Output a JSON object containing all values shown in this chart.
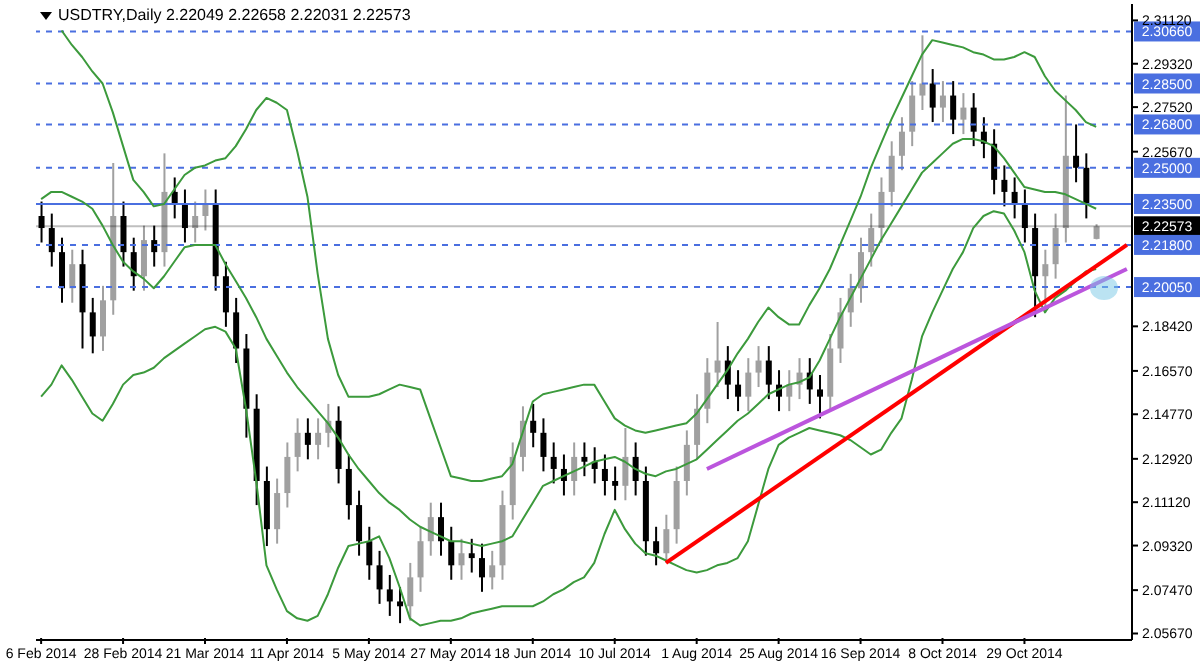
{
  "chart_data": {
    "type": "candlestick",
    "title": "USDTRY,Daily  2.22049 2.22658 2.22031 2.22573",
    "categories": [
      "6 Feb 2014",
      null,
      null,
      null,
      null,
      null,
      null,
      null,
      "28 Feb 2014",
      null,
      null,
      null,
      null,
      null,
      null,
      null,
      "21 Mar 2014",
      null,
      null,
      null,
      null,
      null,
      null,
      null,
      "11 Apr 2014",
      null,
      null,
      null,
      null,
      null,
      null,
      null,
      "5 May 2014",
      null,
      null,
      null,
      null,
      null,
      null,
      null,
      "27 May 2014",
      null,
      null,
      null,
      null,
      null,
      null,
      null,
      "18 Jun 2014",
      null,
      null,
      null,
      null,
      null,
      null,
      null,
      "10 Jul 2014",
      null,
      null,
      null,
      null,
      null,
      null,
      null,
      "1 Aug 2014",
      null,
      null,
      null,
      null,
      null,
      null,
      null,
      "25 Aug 2014",
      null,
      null,
      null,
      null,
      null,
      null,
      null,
      "16 Sep 2014",
      null,
      null,
      null,
      null,
      null,
      null,
      null,
      "8 Oct 2014",
      null,
      null,
      null,
      null,
      null,
      null,
      null,
      "29 Oct 2014",
      null,
      null,
      null,
      null,
      null,
      null,
      null,
      null,
      null,
      null
    ],
    "ohlc": [
      [
        2.23,
        2.236,
        2.219,
        2.225
      ],
      [
        2.225,
        2.231,
        2.209,
        2.215
      ],
      [
        2.215,
        2.221,
        2.194,
        2.2
      ],
      [
        2.2,
        2.216,
        2.194,
        2.21
      ],
      [
        2.21,
        2.216,
        2.175,
        2.19
      ],
      [
        2.19,
        2.196,
        2.173,
        2.18
      ],
      [
        2.18,
        2.201,
        2.174,
        2.195
      ],
      [
        2.195,
        2.252,
        2.189,
        2.23
      ],
      [
        2.23,
        2.236,
        2.209,
        2.215
      ],
      [
        2.215,
        2.221,
        2.199,
        2.205
      ],
      [
        2.205,
        2.226,
        2.199,
        2.22
      ],
      [
        2.22,
        2.226,
        2.209,
        2.215
      ],
      [
        2.215,
        2.256,
        2.209,
        2.24
      ],
      [
        2.24,
        2.246,
        2.229,
        2.235
      ],
      [
        2.235,
        2.241,
        2.219,
        2.225
      ],
      [
        2.225,
        2.236,
        2.219,
        2.23
      ],
      [
        2.23,
        2.241,
        2.224,
        2.235
      ],
      [
        2.235,
        2.241,
        2.199,
        2.205
      ],
      [
        2.205,
        2.211,
        2.184,
        2.19
      ],
      [
        2.19,
        2.196,
        2.169,
        2.175
      ],
      [
        2.175,
        2.181,
        2.138,
        2.15
      ],
      [
        2.15,
        2.156,
        2.11,
        2.12
      ],
      [
        2.12,
        2.126,
        2.093,
        2.1
      ],
      [
        2.1,
        2.121,
        2.094,
        2.115
      ],
      [
        2.115,
        2.136,
        2.109,
        2.13
      ],
      [
        2.13,
        2.146,
        2.124,
        2.14
      ],
      [
        2.14,
        2.146,
        2.129,
        2.135
      ],
      [
        2.135,
        2.146,
        2.129,
        2.14
      ],
      [
        2.14,
        2.152,
        2.134,
        2.145
      ],
      [
        2.145,
        2.151,
        2.119,
        2.125
      ],
      [
        2.125,
        2.131,
        2.104,
        2.11
      ],
      [
        2.11,
        2.116,
        2.089,
        2.095
      ],
      [
        2.095,
        2.101,
        2.079,
        2.085
      ],
      [
        2.085,
        2.091,
        2.069,
        2.075
      ],
      [
        2.075,
        2.081,
        2.064,
        2.07
      ],
      [
        2.07,
        2.076,
        2.061,
        2.068
      ],
      [
        2.068,
        2.086,
        2.062,
        2.08
      ],
      [
        2.08,
        2.101,
        2.074,
        2.095
      ],
      [
        2.095,
        2.111,
        2.089,
        2.105
      ],
      [
        2.105,
        2.111,
        2.089,
        2.095
      ],
      [
        2.095,
        2.101,
        2.079,
        2.085
      ],
      [
        2.085,
        2.096,
        2.079,
        2.09
      ],
      [
        2.09,
        2.096,
        2.082,
        2.088
      ],
      [
        2.088,
        2.094,
        2.074,
        2.08
      ],
      [
        2.08,
        2.091,
        2.075,
        2.085
      ],
      [
        2.085,
        2.116,
        2.079,
        2.11
      ],
      [
        2.11,
        2.136,
        2.104,
        2.13
      ],
      [
        2.13,
        2.151,
        2.124,
        2.145
      ],
      [
        2.145,
        2.152,
        2.134,
        2.14
      ],
      [
        2.14,
        2.146,
        2.124,
        2.13
      ],
      [
        2.13,
        2.136,
        2.119,
        2.125
      ],
      [
        2.125,
        2.131,
        2.114,
        2.12
      ],
      [
        2.12,
        2.136,
        2.114,
        2.13
      ],
      [
        2.13,
        2.136,
        2.122,
        2.128
      ],
      [
        2.128,
        2.134,
        2.119,
        2.125
      ],
      [
        2.125,
        2.131,
        2.114,
        2.12
      ],
      [
        2.12,
        2.126,
        2.112,
        2.118
      ],
      [
        2.118,
        2.142,
        2.112,
        2.13
      ],
      [
        2.13,
        2.136,
        2.114,
        2.12
      ],
      [
        2.12,
        2.126,
        2.089,
        2.095
      ],
      [
        2.095,
        2.101,
        2.085,
        2.09
      ],
      [
        2.09,
        2.106,
        2.086,
        2.1
      ],
      [
        2.1,
        2.126,
        2.094,
        2.12
      ],
      [
        2.12,
        2.141,
        2.114,
        2.135
      ],
      [
        2.135,
        2.156,
        2.129,
        2.15
      ],
      [
        2.15,
        2.171,
        2.144,
        2.165
      ],
      [
        2.165,
        2.186,
        2.159,
        2.17
      ],
      [
        2.17,
        2.176,
        2.154,
        2.16
      ],
      [
        2.16,
        2.166,
        2.149,
        2.155
      ],
      [
        2.155,
        2.171,
        2.149,
        2.165
      ],
      [
        2.165,
        2.176,
        2.159,
        2.17
      ],
      [
        2.17,
        2.176,
        2.154,
        2.16
      ],
      [
        2.16,
        2.166,
        2.149,
        2.155
      ],
      [
        2.155,
        2.166,
        2.149,
        2.16
      ],
      [
        2.16,
        2.171,
        2.154,
        2.165
      ],
      [
        2.165,
        2.171,
        2.152,
        2.158
      ],
      [
        2.158,
        2.164,
        2.146,
        2.155
      ],
      [
        2.155,
        2.181,
        2.149,
        2.175
      ],
      [
        2.175,
        2.196,
        2.169,
        2.19
      ],
      [
        2.19,
        2.206,
        2.184,
        2.2
      ],
      [
        2.2,
        2.221,
        2.194,
        2.215
      ],
      [
        2.215,
        2.231,
        2.209,
        2.225
      ],
      [
        2.225,
        2.246,
        2.219,
        2.24
      ],
      [
        2.24,
        2.261,
        2.234,
        2.255
      ],
      [
        2.255,
        2.271,
        2.249,
        2.265
      ],
      [
        2.265,
        2.286,
        2.259,
        2.28
      ],
      [
        2.28,
        2.305,
        2.274,
        2.285
      ],
      [
        2.285,
        2.291,
        2.269,
        2.275
      ],
      [
        2.275,
        2.286,
        2.269,
        2.28
      ],
      [
        2.28,
        2.286,
        2.264,
        2.27
      ],
      [
        2.27,
        2.281,
        2.264,
        2.275
      ],
      [
        2.275,
        2.281,
        2.259,
        2.265
      ],
      [
        2.265,
        2.271,
        2.254,
        2.26
      ],
      [
        2.26,
        2.266,
        2.239,
        2.245
      ],
      [
        2.245,
        2.251,
        2.234,
        2.24
      ],
      [
        2.24,
        2.246,
        2.229,
        2.235
      ],
      [
        2.235,
        2.241,
        2.219,
        2.225
      ],
      [
        2.225,
        2.231,
        2.188,
        2.205
      ],
      [
        2.205,
        2.216,
        2.19,
        2.21
      ],
      [
        2.21,
        2.231,
        2.204,
        2.225
      ],
      [
        2.225,
        2.28,
        2.219,
        2.255
      ],
      [
        2.255,
        2.268,
        2.244,
        2.25
      ],
      [
        2.25,
        2.256,
        2.229,
        2.235
      ],
      [
        2.22049,
        2.22658,
        2.22031,
        2.22573
      ],
      null,
      null,
      null
    ],
    "colors": [
      "#000000",
      "#000000",
      "#000000",
      "#a0a0a0",
      "#000000",
      "#000000",
      "#a0a0a0",
      "#a0a0a0",
      "#000000",
      "#000000",
      "#a0a0a0",
      "#000000",
      "#a0a0a0",
      "#000000",
      "#000000",
      "#a0a0a0",
      "#a0a0a0",
      "#000000",
      "#000000",
      "#000000",
      "#000000",
      "#000000",
      "#000000",
      "#a0a0a0",
      "#a0a0a0",
      "#a0a0a0",
      "#000000",
      "#a0a0a0",
      "#a0a0a0",
      "#000000",
      "#000000",
      "#000000",
      "#000000",
      "#000000",
      "#000000",
      "#000000",
      "#a0a0a0",
      "#a0a0a0",
      "#a0a0a0",
      "#000000",
      "#000000",
      "#a0a0a0",
      "#000000",
      "#000000",
      "#a0a0a0",
      "#a0a0a0",
      "#a0a0a0",
      "#a0a0a0",
      "#000000",
      "#000000",
      "#000000",
      "#000000",
      "#a0a0a0",
      "#000000",
      "#000000",
      "#000000",
      "#000000",
      "#a0a0a0",
      "#000000",
      "#000000",
      "#000000",
      "#a0a0a0",
      "#a0a0a0",
      "#a0a0a0",
      "#a0a0a0",
      "#a0a0a0",
      "#a0a0a0",
      "#000000",
      "#000000",
      "#a0a0a0",
      "#a0a0a0",
      "#000000",
      "#000000",
      "#a0a0a0",
      "#a0a0a0",
      "#000000",
      "#000000",
      "#a0a0a0",
      "#a0a0a0",
      "#a0a0a0",
      "#a0a0a0",
      "#a0a0a0",
      "#a0a0a0",
      "#a0a0a0",
      "#a0a0a0",
      "#a0a0a0",
      "#a0a0a0",
      "#000000",
      "#a0a0a0",
      "#000000",
      "#a0a0a0",
      "#000000",
      "#000000",
      "#000000",
      "#000000",
      "#000000",
      "#000000",
      "#000000",
      "#a0a0a0",
      "#a0a0a0",
      "#a0a0a0",
      "#000000",
      "#000000",
      "#a0a0a0",
      null,
      null,
      null
    ],
    "series": [
      {
        "type": "line",
        "color": "#3c9a3c",
        "values": [
          null,
          null,
          2.307,
          2.301,
          2.296,
          2.29,
          2.285,
          2.273,
          2.259,
          2.245,
          2.24,
          2.234,
          2.235,
          2.241,
          2.247,
          2.25,
          2.251,
          2.253,
          2.254,
          2.259,
          2.266,
          2.274,
          2.279,
          2.277,
          2.274,
          2.257,
          2.238,
          2.206,
          2.179,
          2.164,
          2.155,
          2.155,
          2.155,
          2.156,
          2.158,
          2.16,
          2.159,
          2.158,
          2.146,
          2.134,
          2.122,
          2.121,
          2.12,
          2.12,
          2.121,
          2.122,
          2.127,
          2.14,
          2.153,
          2.156,
          2.157,
          2.158,
          2.159,
          2.16,
          2.16,
          2.153,
          2.146,
          2.143,
          2.141,
          2.14,
          2.141,
          2.142,
          2.143,
          2.144,
          2.148,
          2.154,
          2.16,
          2.166,
          2.173,
          2.179,
          2.186,
          2.192,
          2.188,
          2.185,
          2.185,
          2.193,
          2.2,
          2.208,
          2.218,
          2.228,
          2.238,
          2.25,
          2.26,
          2.27,
          2.279,
          2.288,
          2.297,
          2.303,
          2.302,
          2.301,
          2.3,
          2.298,
          2.297,
          2.295,
          2.295,
          2.296,
          2.298,
          2.296,
          2.288,
          2.282,
          2.278,
          2.274,
          2.269,
          2.267,
          null,
          null,
          null
        ]
      },
      {
        "type": "line",
        "color": "#3c9a3c",
        "values": [
          2.237,
          2.24,
          2.24,
          2.238,
          2.236,
          2.233,
          2.226,
          2.218,
          2.211,
          2.207,
          2.204,
          2.2,
          2.205,
          2.211,
          2.217,
          2.218,
          2.218,
          2.218,
          2.21,
          2.203,
          2.196,
          2.188,
          2.179,
          2.172,
          2.165,
          2.159,
          2.154,
          2.149,
          2.144,
          2.138,
          2.131,
          2.125,
          2.12,
          2.115,
          2.111,
          2.108,
          2.104,
          2.101,
          2.099,
          2.097,
          2.095,
          2.095,
          2.094,
          2.093,
          2.094,
          2.095,
          2.097,
          2.104,
          2.111,
          2.118,
          2.12,
          2.122,
          2.124,
          2.126,
          2.128,
          2.129,
          2.13,
          2.128,
          2.125,
          2.123,
          2.122,
          2.124,
          2.125,
          2.127,
          2.129,
          2.133,
          2.137,
          2.141,
          2.145,
          2.148,
          2.152,
          2.156,
          2.158,
          2.16,
          2.161,
          2.163,
          2.17,
          2.179,
          2.188,
          2.196,
          2.204,
          2.212,
          2.22,
          2.227,
          2.234,
          2.241,
          2.248,
          2.252,
          2.256,
          2.26,
          2.262,
          2.262,
          2.261,
          2.259,
          2.254,
          2.248,
          2.242,
          2.241,
          2.24,
          2.24,
          2.239,
          2.237,
          2.235,
          2.233,
          null,
          null,
          null
        ]
      },
      {
        "type": "line",
        "color": "#3c9a3c",
        "values": [
          2.155,
          2.16,
          2.168,
          2.162,
          2.155,
          2.148,
          2.145,
          2.152,
          2.16,
          2.164,
          2.165,
          2.167,
          2.171,
          2.174,
          2.177,
          2.18,
          2.183,
          2.184,
          2.182,
          2.175,
          2.15,
          2.12,
          2.085,
          2.075,
          2.066,
          2.063,
          2.062,
          2.064,
          2.073,
          2.084,
          2.093,
          2.094,
          2.095,
          2.097,
          2.088,
          2.076,
          2.063,
          2.06,
          2.061,
          2.062,
          2.062,
          2.063,
          2.065,
          2.066,
          2.067,
          2.068,
          2.068,
          2.068,
          2.068,
          2.07,
          2.073,
          2.075,
          2.078,
          2.08,
          2.086,
          2.098,
          2.108,
          2.1,
          2.094,
          2.09,
          2.089,
          2.087,
          2.085,
          2.083,
          2.082,
          2.083,
          2.085,
          2.086,
          2.088,
          2.095,
          2.11,
          2.125,
          2.135,
          2.138,
          2.14,
          2.142,
          2.141,
          2.14,
          2.139,
          2.137,
          2.134,
          2.131,
          2.133,
          2.14,
          2.146,
          2.162,
          2.18,
          2.19,
          2.199,
          2.208,
          2.215,
          2.225,
          2.23,
          2.232,
          2.231,
          2.224,
          2.215,
          2.199,
          2.19,
          2.196,
          2.199,
          2.203,
          2.207,
          2.208,
          null,
          null,
          null
        ]
      },
      {
        "type": "line",
        "color": "#ff0000",
        "values": [
          null,
          null,
          null,
          null,
          null,
          null,
          null,
          null,
          null,
          null,
          null,
          null,
          null,
          null,
          null,
          null,
          null,
          null,
          null,
          null,
          null,
          null,
          null,
          null,
          null,
          null,
          null,
          null,
          null,
          null,
          null,
          null,
          null,
          null,
          null,
          null,
          null,
          null,
          null,
          null,
          null,
          null,
          null,
          null,
          null,
          null,
          null,
          null,
          null,
          null,
          null,
          null,
          null,
          null,
          null,
          null,
          null,
          null,
          null,
          null,
          null,
          2.086,
          null,
          null,
          null,
          null,
          null,
          null,
          null,
          null,
          null,
          null,
          null,
          null,
          null,
          null,
          null,
          null,
          null,
          null,
          null,
          null,
          null,
          null,
          null,
          null,
          null,
          null,
          null,
          null,
          null,
          null,
          null,
          null,
          null,
          null,
          null,
          null,
          null,
          null,
          null,
          null,
          null,
          null,
          null,
          null,
          2.218
        ]
      },
      {
        "type": "line",
        "color": "#bb55dd",
        "values": [
          null,
          null,
          null,
          null,
          null,
          null,
          null,
          null,
          null,
          null,
          null,
          null,
          null,
          null,
          null,
          null,
          null,
          null,
          null,
          null,
          null,
          null,
          null,
          null,
          null,
          null,
          null,
          null,
          null,
          null,
          null,
          null,
          null,
          null,
          null,
          null,
          null,
          null,
          null,
          null,
          null,
          null,
          null,
          null,
          null,
          null,
          null,
          null,
          null,
          null,
          null,
          null,
          null,
          null,
          null,
          null,
          null,
          null,
          null,
          null,
          null,
          null,
          null,
          null,
          null,
          2.125,
          null,
          null,
          null,
          null,
          null,
          null,
          null,
          null,
          null,
          null,
          null,
          null,
          null,
          null,
          null,
          null,
          null,
          null,
          null,
          null,
          null,
          null,
          null,
          null,
          null,
          null,
          null,
          null,
          null,
          null,
          null,
          null,
          null,
          null,
          null,
          null,
          null,
          null,
          null,
          null,
          2.208
        ]
      }
    ],
    "ylim": [
      2.054,
      2.318
    ],
    "yticks": [
      {
        "value": 2.0567,
        "label": "2.05670"
      },
      {
        "value": 2.0747,
        "label": "2.07470"
      },
      {
        "value": 2.0932,
        "label": "2.09320"
      },
      {
        "value": 2.1112,
        "label": "2.11120"
      },
      {
        "value": 2.1292,
        "label": "2.12920"
      },
      {
        "value": 2.1477,
        "label": "2.14770"
      },
      {
        "value": 2.1657,
        "label": "2.16570"
      },
      {
        "value": 2.1842,
        "label": "2.18420"
      },
      {
        "value": 2.2567,
        "label": "2.25670"
      },
      {
        "value": 2.2752,
        "label": "2.27520"
      },
      {
        "value": 2.2932,
        "label": "2.29320"
      },
      {
        "value": 2.3112,
        "label": "2.31120"
      }
    ],
    "ref_lines": [
      {
        "axis": "y",
        "value": 2.3066,
        "label": "2.30660",
        "color": "#4a6fe0",
        "line_style": "dashed"
      },
      {
        "axis": "y",
        "value": 2.285,
        "label": "2.28500",
        "color": "#4a6fe0",
        "line_style": "dashed"
      },
      {
        "axis": "y",
        "value": 2.268,
        "label": "2.26800",
        "color": "#4a6fe0",
        "line_style": "dashed"
      },
      {
        "axis": "y",
        "value": 2.25,
        "label": "2.25000",
        "color": "#4a6fe0",
        "line_style": "dashed"
      },
      {
        "axis": "y",
        "value": 2.235,
        "label": "2.23500",
        "color": "#4a6fe0",
        "line_style": "solid"
      },
      {
        "axis": "y",
        "value": 2.22573,
        "label": "2.22573",
        "color": "#000000",
        "line_style": "solid"
      },
      {
        "axis": "y",
        "value": 2.218,
        "label": "2.21800",
        "color": "#4a6fe0",
        "line_style": "dashed"
      },
      {
        "axis": "y",
        "value": 2.2005,
        "label": "2.20050",
        "color": "#4a6fe0",
        "line_style": "dashed"
      }
    ]
  }
}
